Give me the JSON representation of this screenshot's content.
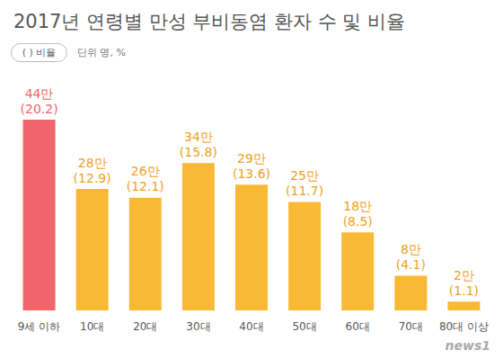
{
  "chart_data": {
    "type": "bar",
    "title": "2017년 연령별 만성 부비동염 환자 수 및 비율",
    "subtitle": "단위 명, %",
    "annotations": [
      {
        "text": "( ) 비율"
      },
      {
        "text": "news1"
      }
    ],
    "categories": [
      "9세 이하",
      "10대",
      "20대",
      "30대",
      "40대",
      "50대",
      "60대",
      "70대",
      "80대 이상"
    ],
    "values": [
      440000,
      280000,
      260000,
      340000,
      290000,
      250000,
      180000,
      80000,
      20000
    ],
    "value_labels": [
      "44만",
      "28만",
      "26만",
      "34만",
      "29만",
      "25만",
      "18만",
      "8만",
      "2만"
    ],
    "shares": [
      20.2,
      12.9,
      12.1,
      15.8,
      13.6,
      11.7,
      8.5,
      4.1,
      1.1
    ],
    "share_labels": [
      "(20.2)",
      "(12.9)",
      "(12.1)",
      "(15.8)",
      "(13.6)",
      "(11.7)",
      "(8.5)",
      "(4.1)",
      "(1.1)"
    ],
    "colors": [
      "#f2646c",
      "#f9b934",
      "#f9b934",
      "#f9b934",
      "#f9b934",
      "#f9b934",
      "#f9b934",
      "#f9b934",
      "#f9b934"
    ],
    "ylim": [
      0,
      550000
    ],
    "data_labels": true,
    "tick_labels": "x",
    "grid": false
  }
}
